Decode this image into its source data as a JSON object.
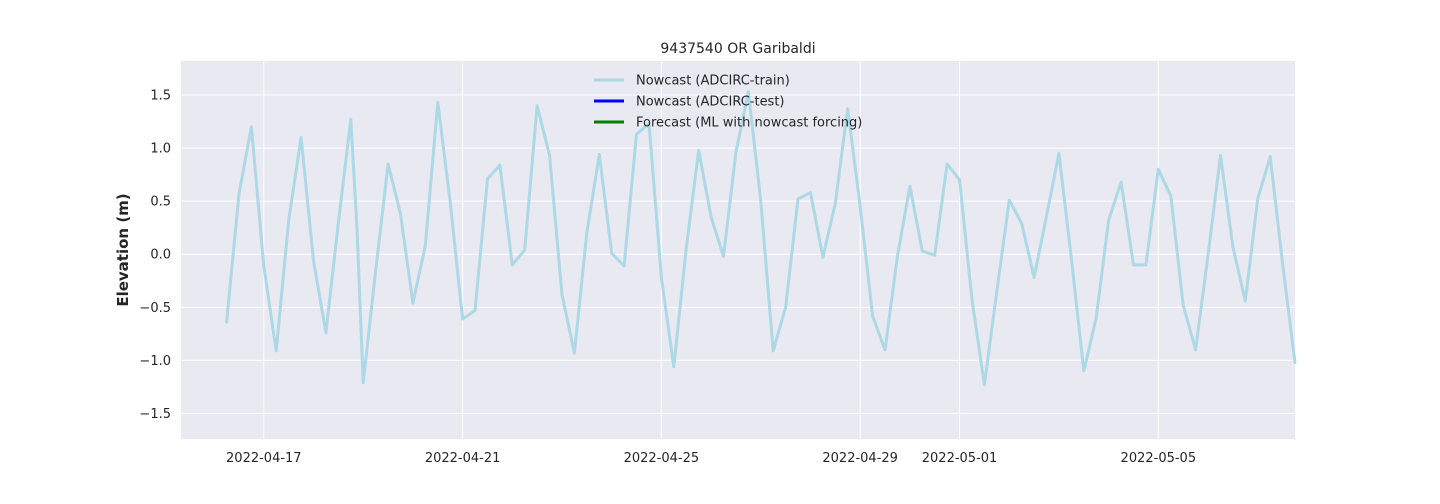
{
  "chart_data": {
    "type": "line",
    "title": "9437540 OR Garibaldi",
    "xlabel": "",
    "ylabel": "Elevation (m)",
    "x_type": "date",
    "xlim": [
      "2022-04-15T08:00",
      "2022-05-07T18:00"
    ],
    "ylim": [
      -1.74,
      1.82
    ],
    "x_ticks": [
      "2022-04-17",
      "2022-04-21",
      "2022-04-25",
      "2022-04-29",
      "2022-05-01",
      "2022-05-05"
    ],
    "y_ticks": [
      -1.5,
      -1.0,
      -0.5,
      0.0,
      0.5,
      1.0,
      1.5
    ],
    "y_tick_labels": [
      "−1.5",
      "−1.0",
      "−0.5",
      "0.0",
      "0.5",
      "1.0",
      "1.5"
    ],
    "grid": true,
    "background": "#e9e9f1",
    "legend_position": "top-center",
    "legend": [
      {
        "label": "Nowcast (ADCIRC-train)",
        "color": "#add8e6"
      },
      {
        "label": "Nowcast (ADCIRC-test)",
        "color": "#0000ff"
      },
      {
        "label": "Forecast (ML with nowcast forcing)",
        "color": "#008000"
      }
    ],
    "series": [
      {
        "name": "Nowcast (ADCIRC-train)",
        "color": "#add8e6",
        "width": 3,
        "points": [
          [
            "2022-04-16T06:00",
            -0.64
          ],
          [
            "2022-04-16T12:00",
            0.57
          ],
          [
            "2022-04-16T18:00",
            1.2
          ],
          [
            "2022-04-17T00:00",
            -0.11
          ],
          [
            "2022-04-17T06:00",
            -0.91
          ],
          [
            "2022-04-17T12:00",
            0.32
          ],
          [
            "2022-04-17T18:00",
            1.1
          ],
          [
            "2022-04-18T00:00",
            -0.06
          ],
          [
            "2022-04-18T06:00",
            -0.74
          ],
          [
            "2022-04-18T12:00",
            0.3
          ],
          [
            "2022-04-18T18:00",
            1.27
          ],
          [
            "2022-04-18T21:00",
            0.24
          ],
          [
            "2022-04-19T00:00",
            -1.21
          ],
          [
            "2022-04-19T06:00",
            -0.16
          ],
          [
            "2022-04-19T12:00",
            0.85
          ],
          [
            "2022-04-19T18:00",
            0.38
          ],
          [
            "2022-04-20T00:00",
            -0.46
          ],
          [
            "2022-04-20T06:00",
            0.08
          ],
          [
            "2022-04-20T12:00",
            1.43
          ],
          [
            "2022-04-20T18:00",
            0.49
          ],
          [
            "2022-04-21T00:00",
            -0.61
          ],
          [
            "2022-04-21T06:00",
            -0.53
          ],
          [
            "2022-04-21T12:00",
            0.71
          ],
          [
            "2022-04-21T18:00",
            0.84
          ],
          [
            "2022-04-22T00:00",
            -0.1
          ],
          [
            "2022-04-22T06:00",
            0.04
          ],
          [
            "2022-04-22T12:00",
            1.4
          ],
          [
            "2022-04-22T18:00",
            0.93
          ],
          [
            "2022-04-23T00:00",
            -0.38
          ],
          [
            "2022-04-23T06:00",
            -0.93
          ],
          [
            "2022-04-23T12:00",
            0.2
          ],
          [
            "2022-04-23T18:00",
            0.94
          ],
          [
            "2022-04-24T00:00",
            0.01
          ],
          [
            "2022-04-24T06:00",
            -0.11
          ],
          [
            "2022-04-24T12:00",
            1.13
          ],
          [
            "2022-04-24T18:00",
            1.23
          ],
          [
            "2022-04-25T00:00",
            -0.22
          ],
          [
            "2022-04-25T06:00",
            -1.06
          ],
          [
            "2022-04-25T12:00",
            0.05
          ],
          [
            "2022-04-25T18:00",
            0.98
          ],
          [
            "2022-04-26T00:00",
            0.35
          ],
          [
            "2022-04-26T06:00",
            -0.02
          ],
          [
            "2022-04-26T12:00",
            0.96
          ],
          [
            "2022-04-26T18:00",
            1.53
          ],
          [
            "2022-04-27T00:00",
            0.5
          ],
          [
            "2022-04-27T06:00",
            -0.91
          ],
          [
            "2022-04-27T12:00",
            -0.5
          ],
          [
            "2022-04-27T18:00",
            0.52
          ],
          [
            "2022-04-28T00:00",
            0.58
          ],
          [
            "2022-04-28T06:00",
            -0.03
          ],
          [
            "2022-04-28T12:00",
            0.48
          ],
          [
            "2022-04-28T18:00",
            1.37
          ],
          [
            "2022-04-29T00:00",
            0.45
          ],
          [
            "2022-04-29T06:00",
            -0.58
          ],
          [
            "2022-04-29T12:00",
            -0.9
          ],
          [
            "2022-04-29T18:00",
            -0.02
          ],
          [
            "2022-04-30T00:00",
            0.64
          ],
          [
            "2022-04-30T06:00",
            0.03
          ],
          [
            "2022-04-30T12:00",
            -0.01
          ],
          [
            "2022-04-30T18:00",
            0.85
          ],
          [
            "2022-05-01T00:00",
            0.7
          ],
          [
            "2022-05-01T06:00",
            -0.43
          ],
          [
            "2022-05-01T12:00",
            -1.23
          ],
          [
            "2022-05-01T18:00",
            -0.35
          ],
          [
            "2022-05-02T00:00",
            0.51
          ],
          [
            "2022-05-02T06:00",
            0.29
          ],
          [
            "2022-05-02T12:00",
            -0.22
          ],
          [
            "2022-05-02T18:00",
            0.36
          ],
          [
            "2022-05-03T00:00",
            0.95
          ],
          [
            "2022-05-03T06:00",
            -0.04
          ],
          [
            "2022-05-03T12:00",
            -1.1
          ],
          [
            "2022-05-03T18:00",
            -0.6
          ],
          [
            "2022-05-04T00:00",
            0.32
          ],
          [
            "2022-05-04T06:00",
            0.68
          ],
          [
            "2022-05-04T12:00",
            -0.1
          ],
          [
            "2022-05-04T18:00",
            -0.1
          ],
          [
            "2022-05-05T00:00",
            0.8
          ],
          [
            "2022-05-05T06:00",
            0.55
          ],
          [
            "2022-05-05T12:00",
            -0.48
          ],
          [
            "2022-05-05T18:00",
            -0.9
          ],
          [
            "2022-05-06T00:00",
            -0.01
          ],
          [
            "2022-05-06T06:00",
            0.93
          ],
          [
            "2022-05-06T12:00",
            0.07
          ],
          [
            "2022-05-06T18:00",
            -0.44
          ],
          [
            "2022-05-07T00:00",
            0.52
          ],
          [
            "2022-05-07T06:00",
            0.92
          ],
          [
            "2022-05-07T12:00",
            -0.09
          ],
          [
            "2022-05-07T18:00",
            -1.02
          ]
        ]
      }
    ]
  }
}
